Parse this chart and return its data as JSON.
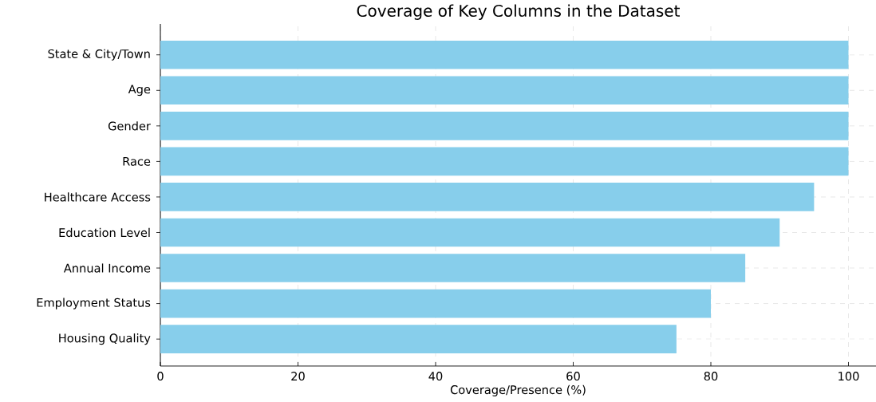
{
  "chart_data": {
    "type": "bar",
    "orientation": "horizontal",
    "title": "Coverage of Key Columns in the Dataset",
    "xlabel": "Coverage/Presence (%)",
    "categories": [
      "State & City/Town",
      "Age",
      "Gender",
      "Race",
      "Healthcare Access",
      "Education Level",
      "Annual Income",
      "Employment Status",
      "Housing Quality"
    ],
    "values": [
      100,
      100,
      100,
      100,
      95,
      90,
      85,
      80,
      75
    ],
    "color": "#87ceeb",
    "xlim": [
      0,
      104
    ],
    "xticks": [
      0,
      20,
      40,
      60,
      80,
      100
    ],
    "grid": true
  }
}
